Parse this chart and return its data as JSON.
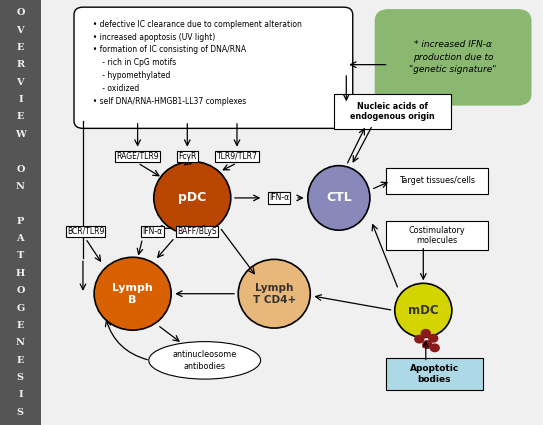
{
  "sidebar_color": "#555555",
  "sidebar_text_color": "#f0f0f0",
  "bg_color": "#f0f0f0",
  "sidebar_letters": [
    "O",
    "V",
    "E",
    "R",
    "V",
    "I",
    "E",
    "W",
    "",
    "O",
    "N",
    "",
    "P",
    "A",
    "T",
    "H",
    "O",
    "G",
    "E",
    "N",
    "E",
    "S",
    "I",
    "S"
  ],
  "top_box_text": "  • defective IC clearance due to complement alteration\n  • increased apoptosis (UV light)\n  • formation of IC consisting of DNA/RNA\n      - rich in CpG motifs\n      - hypomethylated\n      - oxidized\n  • self DNA/RNA-HMGB1-LL37 complexes",
  "green_box_text": "* increased IFN-α\nproduction due to\n\"genetic signature\"",
  "green_box_color": "#8ab870",
  "pDC_color": "#b84500",
  "CTL_color": "#8888bb",
  "LymphB_color": "#d96000",
  "LymphT_color": "#e8b87a",
  "mDC_color": "#d4d400",
  "apoptotic_box_color": "#add8e6"
}
